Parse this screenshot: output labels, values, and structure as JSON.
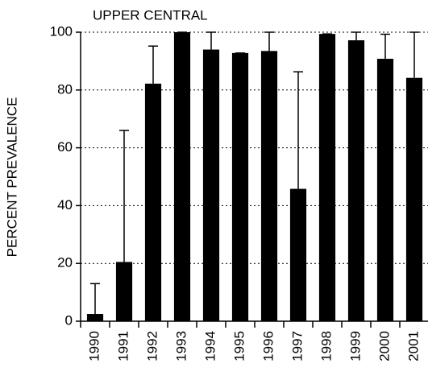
{
  "chart_data": {
    "type": "bar",
    "title": "UPPER CENTRAL",
    "y_label": "PERCENT PREVALENCE",
    "categories": [
      "1990",
      "1991",
      "1992",
      "1993",
      "1994",
      "1995",
      "1996",
      "1997",
      "1998",
      "1999",
      "2000",
      "2001"
    ],
    "values": [
      2.5,
      20.5,
      82.2,
      100,
      94,
      92.8,
      93.5,
      45.8,
      99.4,
      97.2,
      90.8,
      84.2
    ],
    "errors": [
      10.5,
      45.5,
      13,
      0,
      6,
      0,
      6.5,
      40.5,
      0,
      2.8,
      8.5,
      15.8
    ],
    "color": "#000000",
    "ylim": [
      0,
      100
    ],
    "yticks": [
      0,
      20,
      40,
      60,
      80,
      100
    ],
    "grid": true
  }
}
